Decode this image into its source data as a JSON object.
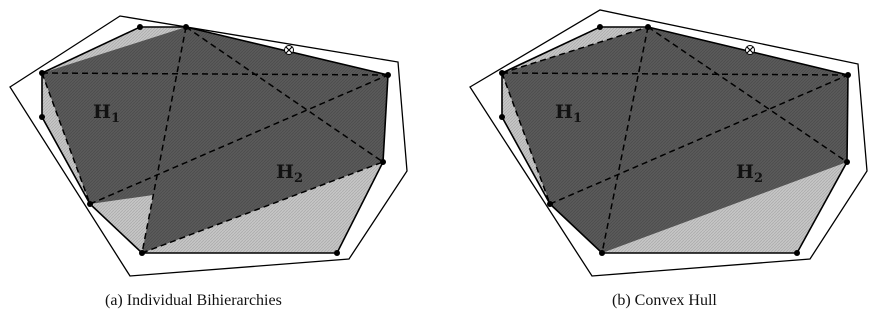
{
  "figure": {
    "panel_a": {
      "caption": "(a) Individual Bihierarchies",
      "labels": {
        "h1_main": "H",
        "h1_sub": "1",
        "h2_main": "H",
        "h2_sub": "2"
      }
    },
    "panel_b": {
      "caption": "(b) Convex Hull",
      "labels": {
        "h1_main": "H",
        "h1_sub": "1",
        "h2_main": "H",
        "h2_sub": "2"
      }
    }
  },
  "colors": {
    "light_fill": "#c8c8c8",
    "dark_fill": "#595959",
    "stroke": "#000000",
    "background": "#ffffff"
  },
  "icons": {
    "vertex": "filled-dot",
    "special_point": "circle-cross-marker"
  }
}
